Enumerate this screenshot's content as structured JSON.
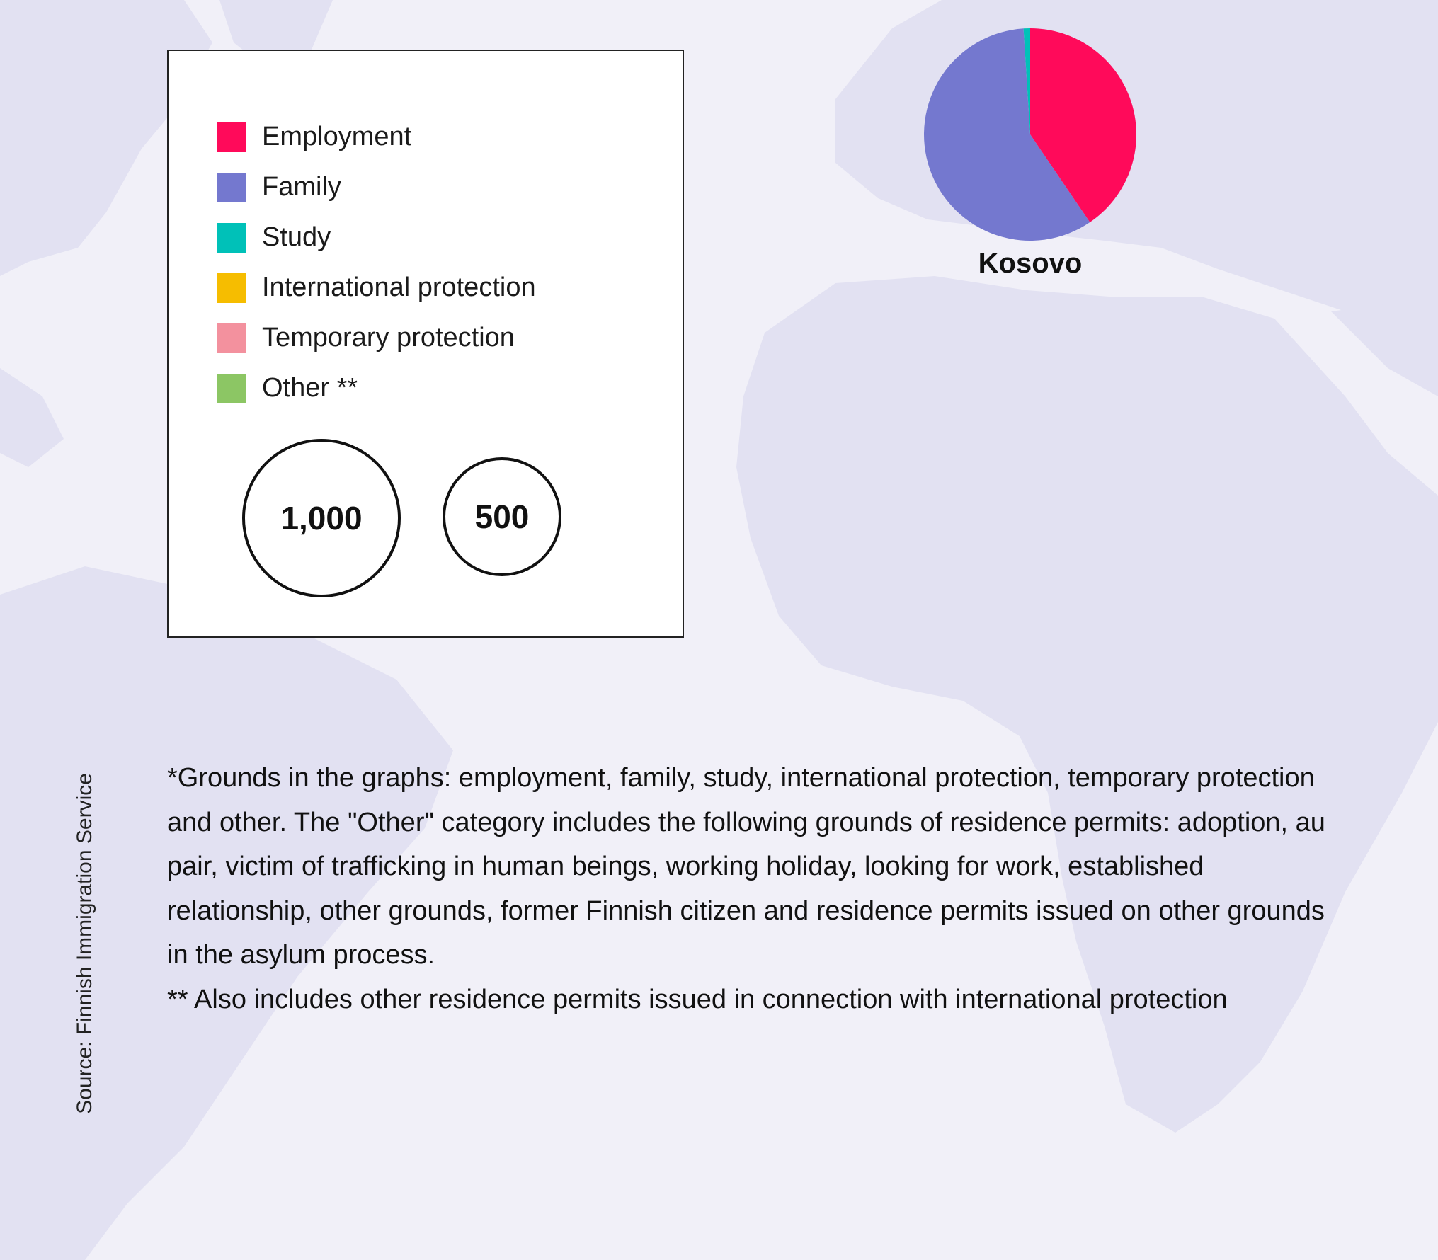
{
  "colors": {
    "background": "#f1f0f8",
    "map_land": "#e2e1f2"
  },
  "legend": {
    "items": [
      {
        "label": "Employment",
        "color": "#ff0a5a"
      },
      {
        "label": "Family",
        "color": "#7478cf"
      },
      {
        "label": "Study",
        "color": "#00c1b8"
      },
      {
        "label": "International protection",
        "color": "#f6bd00"
      },
      {
        "label": "Temporary protection",
        "color": "#f3919e"
      },
      {
        "label": "Other **",
        "color": "#8cc664"
      }
    ],
    "size_scale": [
      {
        "label": "1,000",
        "value": 1000
      },
      {
        "label": "500",
        "value": 500
      }
    ]
  },
  "chart_data": {
    "type": "pie",
    "title": "Kosovo",
    "categories": [
      "Employment",
      "Family",
      "Study",
      "International protection",
      "Temporary protection",
      "Other **"
    ],
    "values": [
      40.5,
      58.5,
      1.0,
      0,
      0,
      0
    ],
    "unit": "share (%)"
  },
  "footnote": {
    "line1": "*Grounds in the graphs: employment, family, study, international protection, temporary protection and other. The \"Other\" category includes the following grounds of residence permits: adoption, au pair, victim of trafficking in human beings, working holiday, looking for work, established relationship, other grounds, former Finnish citizen and residence permits issued on other grounds in the asylum process.",
    "line2": "** Also includes other residence permits issued in connection with international protection"
  },
  "source": "Source: Finnish Immigration Service"
}
